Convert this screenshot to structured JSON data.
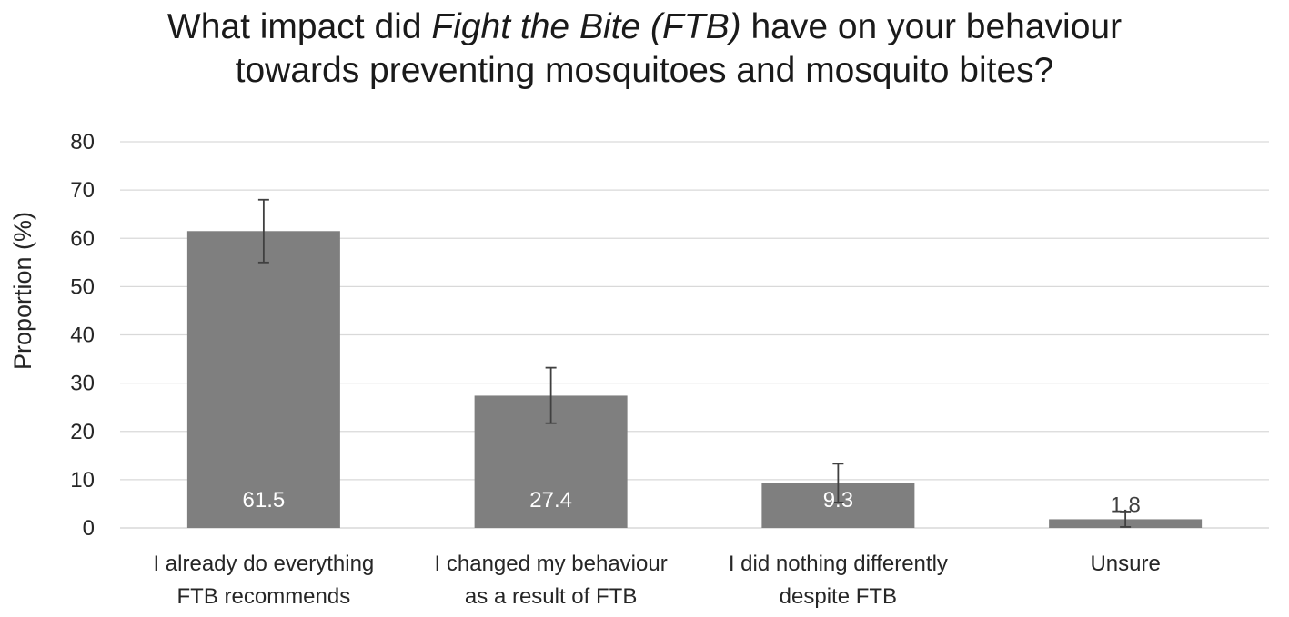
{
  "chart_data": {
    "type": "bar",
    "title": {
      "line1_before": "What impact did ",
      "line1_italic": "Fight the Bite (FTB)",
      "line1_after": " have on your behaviour",
      "line2": "towards preventing mosquitoes and mosquito bites?"
    },
    "ylabel": "Proportion (%)",
    "xlabel": "",
    "ylim": [
      0,
      80
    ],
    "yticks": [
      0,
      10,
      20,
      30,
      40,
      50,
      60,
      70,
      80
    ],
    "grid": true,
    "categories": [
      [
        "I already do everything",
        "FTB recommends"
      ],
      [
        "I changed my behaviour",
        "as a result of FTB"
      ],
      [
        "I did nothing differently",
        "despite FTB"
      ],
      [
        "Unsure"
      ]
    ],
    "values": [
      61.5,
      27.4,
      9.3,
      1.8
    ],
    "data_labels": [
      "61.5",
      "27.4",
      "9.3",
      "1.8"
    ],
    "error_bars": [
      {
        "low": 55.0,
        "high": 68.0
      },
      {
        "low": 21.7,
        "high": 33.2
      },
      {
        "low": 5.3,
        "high": 13.3
      },
      {
        "low": 0.2,
        "high": 3.4
      }
    ],
    "colors": {
      "bar": "#7f7f7f",
      "grid": "#d9d9d9",
      "error_bar": "#404040",
      "label_inside": "#ffffff",
      "label_outside": "#404040"
    }
  }
}
